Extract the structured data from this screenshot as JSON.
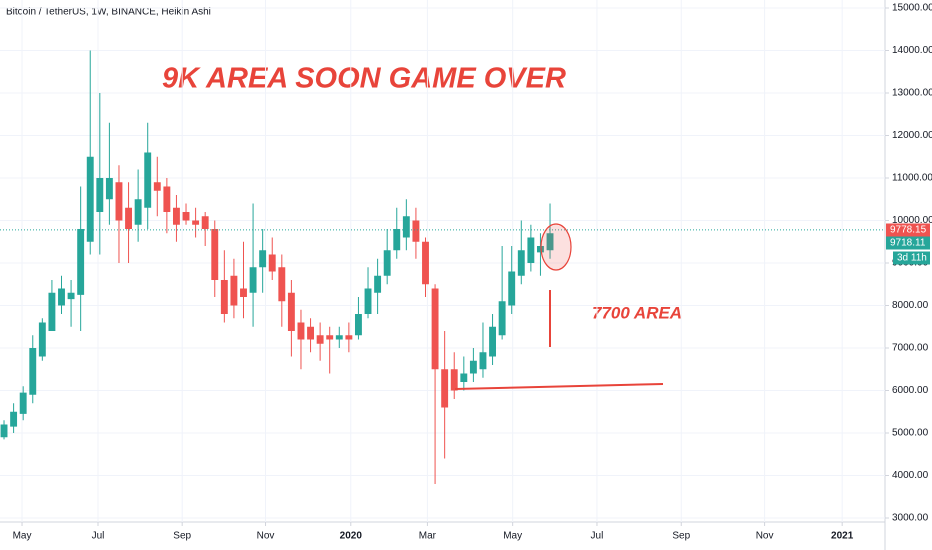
{
  "chart_data": {
    "type": "candlestick",
    "title": "Bitcoin / TetherUS, 1W, BINANCE, Heikin Ashi",
    "annotations": [
      "9K AREA SOON GAME OVER",
      "7700 AREA"
    ],
    "up_color": "#26a69a",
    "down_color": "#ef5350",
    "categories": [
      null,
      null,
      null,
      null,
      null,
      null,
      null,
      null,
      null,
      null,
      null,
      null,
      null,
      null,
      null,
      null,
      null,
      null,
      null,
      null,
      null,
      null,
      null,
      null,
      null,
      null,
      null,
      null,
      null,
      null,
      null,
      null,
      null,
      null,
      null,
      null,
      null,
      null,
      null,
      null,
      null,
      null,
      null,
      null,
      null,
      null,
      null,
      null,
      null,
      null,
      null,
      null,
      null,
      null,
      null,
      null,
      null,
      null
    ],
    "open": [
      4900,
      5150,
      5450,
      5900,
      6800,
      7400,
      8000,
      8150,
      8250,
      9500,
      10200,
      10500,
      10900,
      10300,
      9900,
      10300,
      10900,
      10800,
      10300,
      10200,
      10000,
      10100,
      9800,
      8600,
      8700,
      8400,
      8300,
      8900,
      9200,
      8900,
      8300,
      7600,
      7500,
      7300,
      7300,
      7200,
      7300,
      7300,
      7800,
      8300,
      8700,
      9300,
      9600,
      10000,
      9500,
      8400,
      6500,
      6500,
      6200,
      6400,
      6500,
      6800,
      7300,
      8000,
      8700,
      9000,
      9250,
      9300
    ],
    "high": [
      5300,
      5700,
      6100,
      7300,
      7700,
      8600,
      8700,
      8600,
      10800,
      14000,
      13000,
      12300,
      11300,
      10900,
      11200,
      12300,
      11500,
      11000,
      10600,
      10400,
      10300,
      10200,
      10000,
      9300,
      9100,
      9500,
      10400,
      9800,
      9600,
      9200,
      8600,
      7900,
      7700,
      7600,
      7500,
      7500,
      7600,
      8200,
      8900,
      9100,
      9800,
      10300,
      10500,
      10300,
      9600,
      8500,
      7400,
      6900,
      6800,
      7000,
      7600,
      7800,
      9400,
      9400,
      10000,
      9900,
      9700,
      10400
    ],
    "low": [
      4850,
      5000,
      5300,
      5700,
      6700,
      7400,
      7800,
      7500,
      7400,
      9200,
      9200,
      9900,
      9000,
      9000,
      9500,
      9800,
      10100,
      9700,
      9500,
      9900,
      9600,
      9400,
      8200,
      7600,
      7700,
      7700,
      7500,
      8300,
      8600,
      7500,
      6800,
      6500,
      6900,
      6700,
      6400,
      7000,
      6900,
      7200,
      7700,
      7800,
      8500,
      9100,
      9300,
      9100,
      8200,
      3800,
      4400,
      5800,
      6000,
      6200,
      6300,
      6600,
      7200,
      7800,
      8500,
      8800,
      8700,
      9100
    ],
    "close": [
      5200,
      5500,
      5950,
      7000,
      7600,
      8300,
      8400,
      8300,
      9800,
      11500,
      11000,
      11000,
      10000,
      9800,
      10500,
      11600,
      10700,
      10200,
      9900,
      10000,
      9900,
      9800,
      8600,
      7800,
      8000,
      8200,
      8900,
      9300,
      8800,
      8100,
      7400,
      7200,
      7200,
      7100,
      7200,
      7300,
      7200,
      7800,
      8400,
      8700,
      9300,
      9800,
      10100,
      9500,
      8500,
      6500,
      5600,
      6000,
      6400,
      6700,
      6900,
      7500,
      8100,
      8800,
      9300,
      9600,
      9400,
      9700
    ],
    "xlim": [
      -0.42,
      91.97
    ],
    "xticks": [
      {
        "value": 1.88,
        "label": "May"
      },
      {
        "value": 9.81,
        "label": "Jul"
      },
      {
        "value": 18.6,
        "label": "Sep"
      },
      {
        "value": 27.3,
        "label": "Nov"
      },
      {
        "value": 36.2,
        "label": "2020"
      },
      {
        "value": 44.2,
        "label": "Mar"
      },
      {
        "value": 53.1,
        "label": "May"
      },
      {
        "value": 61.9,
        "label": "Jul"
      },
      {
        "value": 70.7,
        "label": "Sep"
      },
      {
        "value": 79.4,
        "label": "Nov"
      },
      {
        "value": 87.5,
        "label": "2021"
      }
    ],
    "ylim": [
      2906,
      15188
    ],
    "yticks": [
      {
        "value": 3000,
        "label": "3000.00"
      },
      {
        "value": 4000,
        "label": "4000.00"
      },
      {
        "value": 5000,
        "label": "5000.00"
      },
      {
        "value": 6000,
        "label": "6000.00"
      },
      {
        "value": 7000,
        "label": "7000.00"
      },
      {
        "value": 8000,
        "label": "8000.00"
      },
      {
        "value": 9000,
        "label": "9000.00"
      },
      {
        "value": 10000,
        "label": "10000.00"
      },
      {
        "value": 11000,
        "label": "11000.00"
      },
      {
        "value": 12000,
        "label": "12000.00"
      },
      {
        "value": 13000,
        "label": "13000.00"
      },
      {
        "value": 14000,
        "label": "14000.00"
      },
      {
        "value": 15000,
        "label": "15000.00"
      }
    ],
    "grid": true,
    "price_lines": [
      {
        "value": 9778.15,
        "label": "9778.15",
        "color": "#ef5350"
      },
      {
        "value": 9718.11,
        "label": "9718.11",
        "color": "#26a69a"
      }
    ],
    "countdown": "3d 11h"
  }
}
